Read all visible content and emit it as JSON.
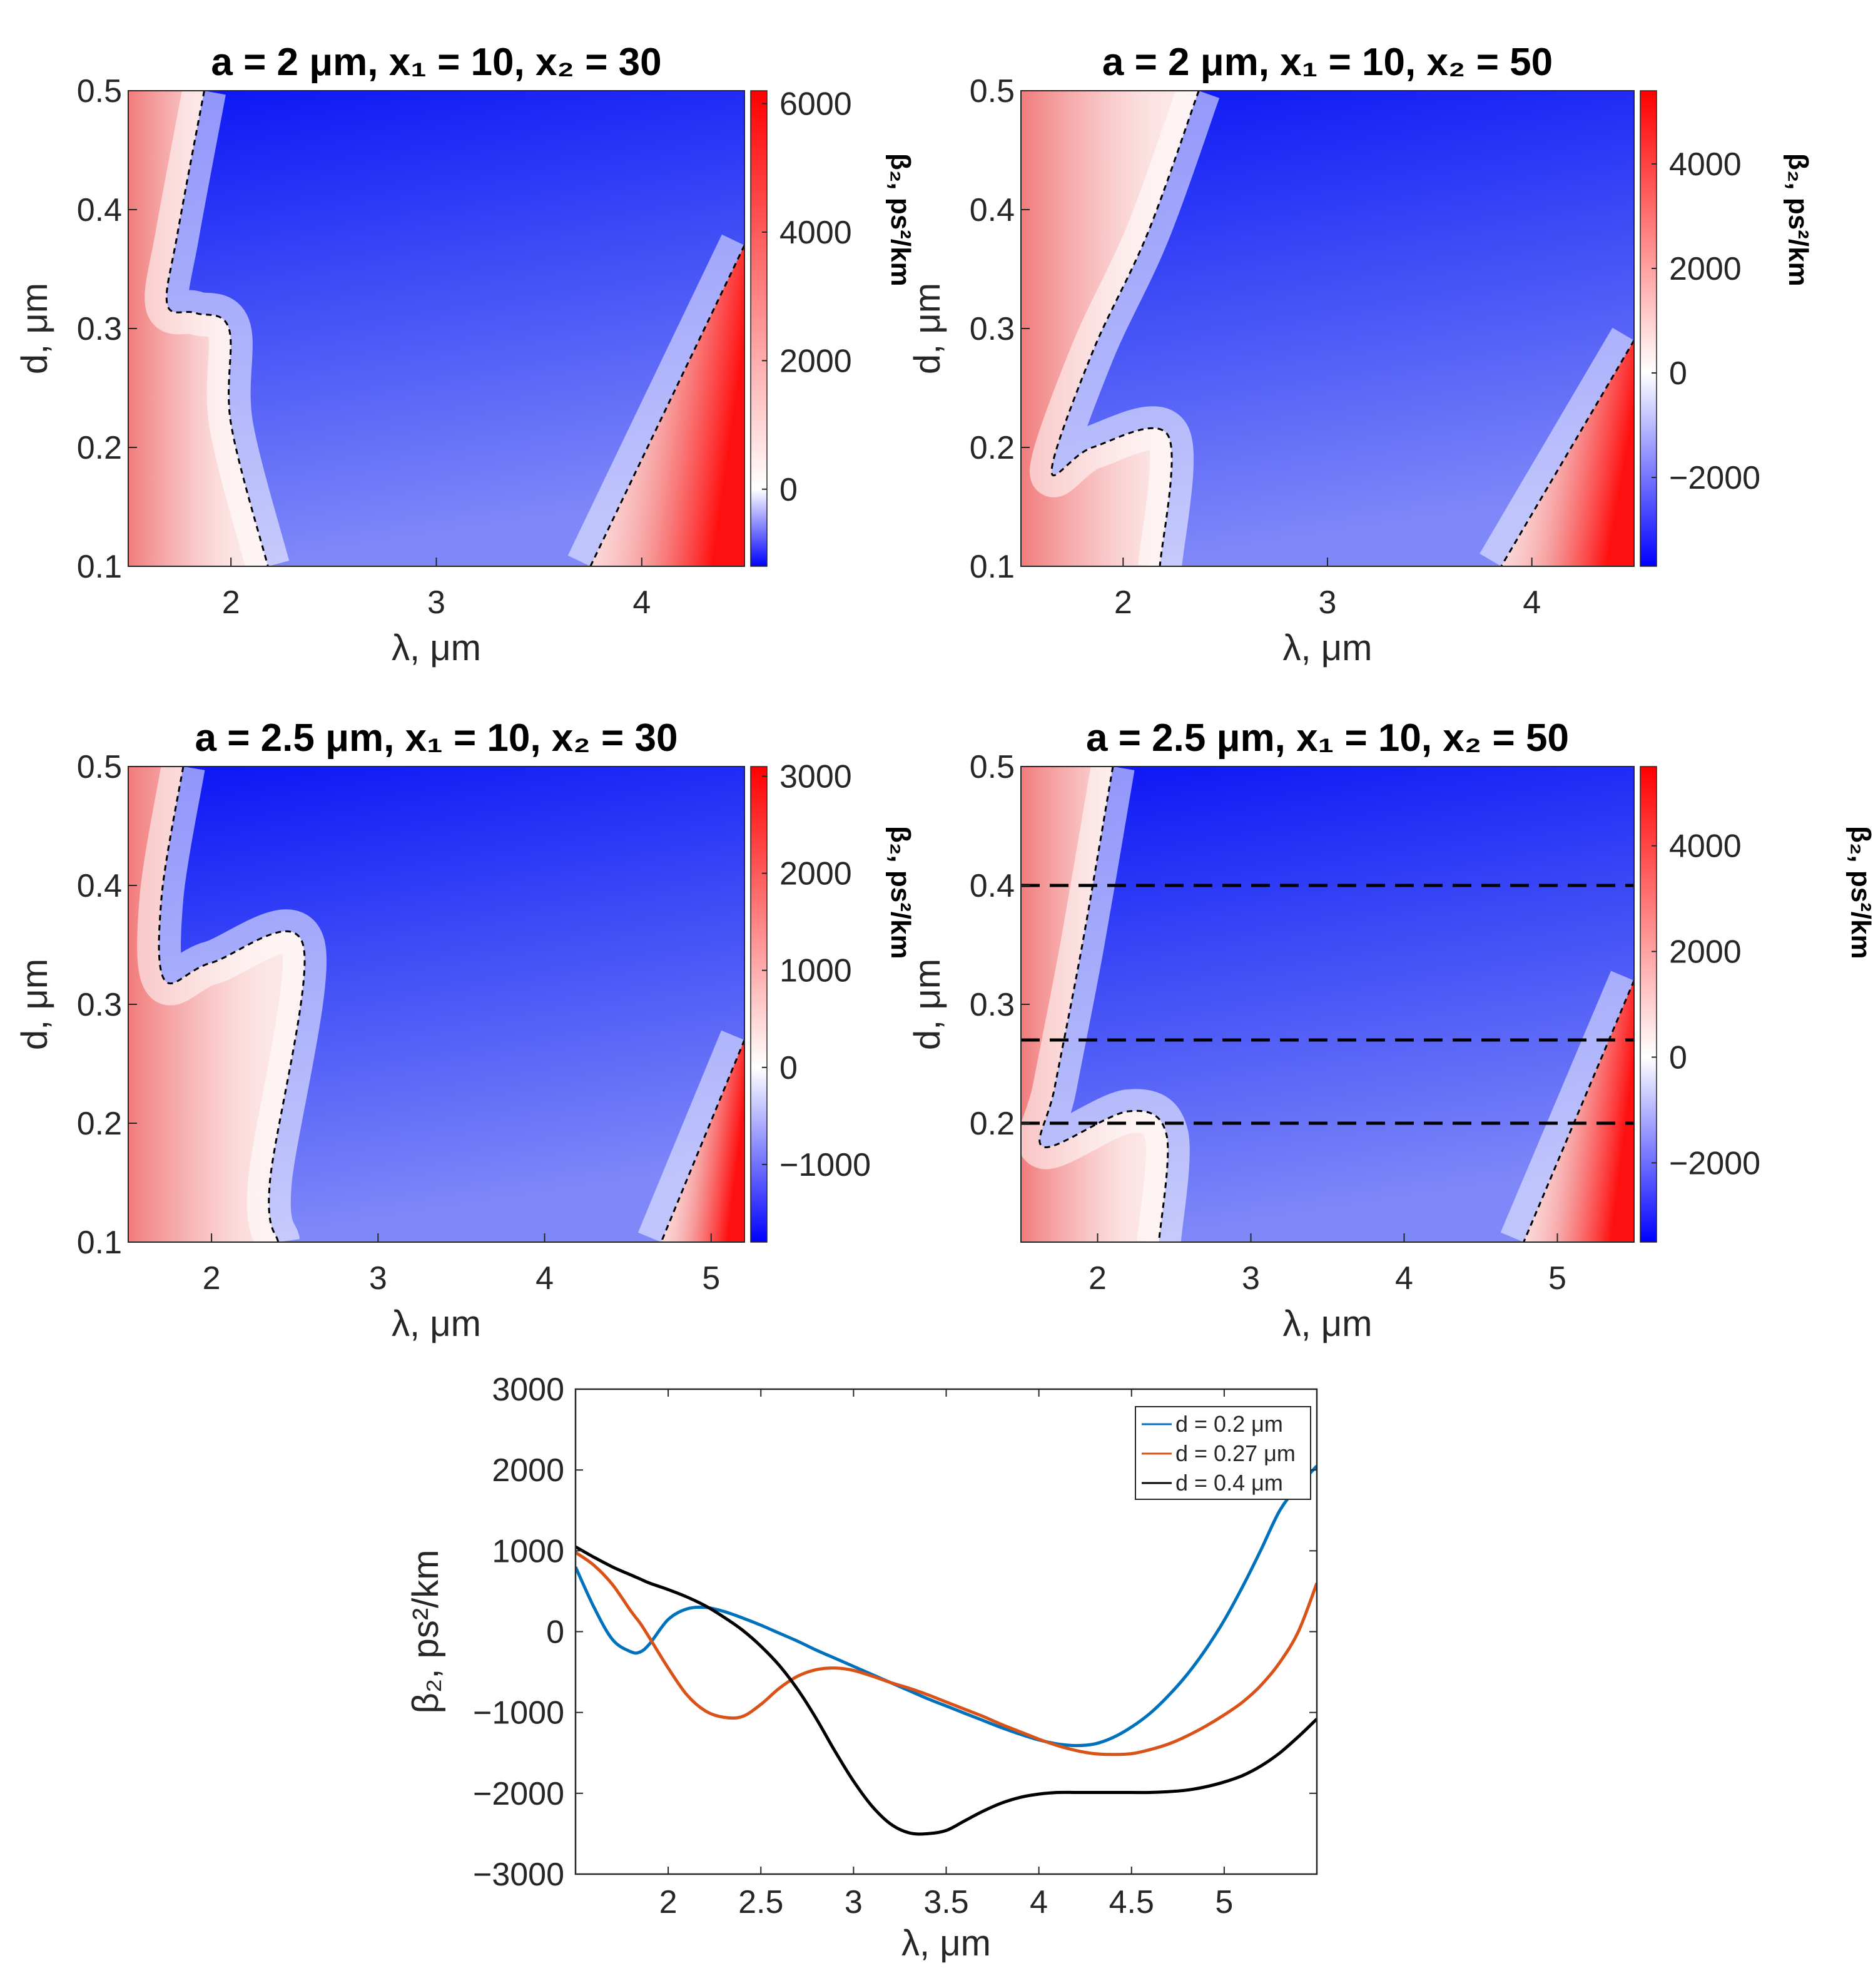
{
  "colors": {
    "positive": "#ff0000",
    "zero": "#ffffff",
    "negative": "#0000ff",
    "blue_line": "#0072bd",
    "orange_line": "#d95319",
    "black_line": "#000000"
  },
  "chart_data": [
    {
      "type": "heatmap",
      "title": "a = 2 μm, x₁ = 10, x₂ = 30",
      "xlabel": "λ, μm",
      "ylabel": "d, μm",
      "xlim": [
        1.5,
        4.5
      ],
      "ylim": [
        0.1,
        0.5
      ],
      "xticks": [
        2,
        3,
        4
      ],
      "yticks": [
        0.1,
        0.2,
        0.3,
        0.4,
        0.5
      ],
      "colorbar": {
        "label": "β₂, ps²/km",
        "range": [
          -1200,
          6200
        ],
        "ticks": [
          0,
          2000,
          4000,
          6000
        ]
      },
      "zero_contours": [
        [
          [
            1.87,
            0.5
          ],
          [
            1.74,
            0.38
          ],
          [
            1.69,
            0.32
          ],
          [
            1.83,
            0.313
          ],
          [
            1.99,
            0.3
          ],
          [
            2.0,
            0.22
          ],
          [
            2.18,
            0.1
          ]
        ],
        [
          [
            4.5,
            0.37
          ],
          [
            3.75,
            0.1
          ]
        ]
      ]
    },
    {
      "type": "heatmap",
      "title": "a = 2 μm, x₁ = 10, x₂ = 50",
      "xlabel": "λ, μm",
      "ylabel": "d, μm",
      "xlim": [
        1.5,
        4.5
      ],
      "ylim": [
        0.1,
        0.5
      ],
      "xticks": [
        2,
        3,
        4
      ],
      "yticks": [
        0.1,
        0.2,
        0.3,
        0.4,
        0.5
      ],
      "colorbar": {
        "label": "β₂, ps²/km",
        "range": [
          -3700,
          5400
        ],
        "ticks": [
          -2000,
          0,
          2000,
          4000
        ]
      },
      "zero_contours": [
        [
          [
            2.37,
            0.5
          ],
          [
            2.12,
            0.38
          ],
          [
            1.85,
            0.28
          ],
          [
            1.65,
            0.18
          ],
          [
            1.85,
            0.2
          ],
          [
            2.22,
            0.21
          ],
          [
            2.18,
            0.1
          ]
        ],
        [
          [
            4.5,
            0.29
          ],
          [
            3.85,
            0.1
          ]
        ]
      ]
    },
    {
      "type": "heatmap",
      "title": "a = 2.5 μm, x₁ = 10, x₂ = 30",
      "xlabel": "λ, μm",
      "ylabel": "d, μm",
      "xlim": [
        1.5,
        5.2
      ],
      "ylim": [
        0.1,
        0.5
      ],
      "xticks": [
        2,
        3,
        4,
        5
      ],
      "yticks": [
        0.1,
        0.2,
        0.3,
        0.4,
        0.5
      ],
      "colorbar": {
        "label": "β₂, ps²/km",
        "range": [
          -1800,
          3100
        ],
        "ticks": [
          -1000,
          0,
          1000,
          2000,
          3000
        ]
      },
      "zero_contours": [
        [
          [
            1.83,
            0.5
          ],
          [
            1.7,
            0.39
          ],
          [
            1.72,
            0.32
          ],
          [
            2.0,
            0.335
          ],
          [
            2.55,
            0.35
          ],
          [
            2.35,
            0.15
          ],
          [
            2.4,
            0.1
          ]
        ],
        [
          [
            5.2,
            0.27
          ],
          [
            4.7,
            0.1
          ]
        ]
      ]
    },
    {
      "type": "heatmap",
      "title": "a = 2.5 μm, x₁ = 10, x₂ = 50",
      "xlabel": "λ, μm",
      "ylabel": "d, μm",
      "xlim": [
        1.5,
        5.5
      ],
      "ylim": [
        0.1,
        0.5
      ],
      "xticks": [
        2,
        3,
        4,
        5
      ],
      "yticks": [
        0.2,
        0.3,
        0.4,
        0.5
      ],
      "colorbar": {
        "label": "β₂, ps²/km",
        "range": [
          -3500,
          5500
        ],
        "ticks": [
          -2000,
          0,
          2000,
          4000
        ]
      },
      "zero_contours": [
        [
          [
            2.1,
            0.5
          ],
          [
            1.9,
            0.35
          ],
          [
            1.72,
            0.23
          ],
          [
            1.65,
            0.18
          ],
          [
            2.2,
            0.21
          ],
          [
            2.45,
            0.19
          ],
          [
            2.4,
            0.1
          ]
        ],
        [
          [
            5.5,
            0.32
          ],
          [
            4.78,
            0.1
          ]
        ]
      ],
      "reference_lines": [
        0.2,
        0.27,
        0.4
      ]
    },
    {
      "type": "line",
      "xlabel": "λ, μm",
      "ylabel": "β₂, ps²/km",
      "xlim": [
        1.5,
        5.5
      ],
      "ylim": [
        -3000,
        3000
      ],
      "xticks": [
        2,
        2.5,
        3,
        3.5,
        4,
        4.5,
        5
      ],
      "yticks": [
        -3000,
        -2000,
        -1000,
        0,
        1000,
        2000,
        3000
      ],
      "legend_position": "top-right",
      "x": [
        1.5,
        1.6,
        1.7,
        1.8,
        1.85,
        1.9,
        2.0,
        2.1,
        2.2,
        2.3,
        2.4,
        2.5,
        2.6,
        2.7,
        2.8,
        2.9,
        3.0,
        3.1,
        3.2,
        3.3,
        3.4,
        3.5,
        3.6,
        3.7,
        3.8,
        3.9,
        4.0,
        4.1,
        4.2,
        4.3,
        4.4,
        4.5,
        4.6,
        4.7,
        4.8,
        4.9,
        5.0,
        5.1,
        5.2,
        5.3,
        5.4,
        5.5
      ],
      "series": [
        {
          "name": "d = 0.2 μm",
          "color": "#0072bd",
          "values": [
            800,
            300,
            -100,
            -250,
            -250,
            -150,
            150,
            280,
            300,
            250,
            170,
            80,
            -20,
            -120,
            -230,
            -330,
            -430,
            -530,
            -630,
            -730,
            -830,
            -920,
            -1010,
            -1100,
            -1190,
            -1270,
            -1340,
            -1390,
            -1410,
            -1390,
            -1310,
            -1180,
            -1010,
            -790,
            -530,
            -220,
            140,
            560,
            1020,
            1500,
            1800,
            2050
          ]
        },
        {
          "name": "d = 0.27 μm",
          "color": "#d95319",
          "values": [
            980,
            820,
            580,
            250,
            100,
            -80,
            -450,
            -780,
            -980,
            -1060,
            -1050,
            -900,
            -700,
            -550,
            -470,
            -450,
            -480,
            -550,
            -630,
            -700,
            -780,
            -870,
            -960,
            -1050,
            -1150,
            -1240,
            -1330,
            -1410,
            -1470,
            -1510,
            -1520,
            -1510,
            -1460,
            -1390,
            -1290,
            -1170,
            -1030,
            -870,
            -660,
            -380,
            0,
            600
          ]
        },
        {
          "name": "d = 0.4 μm",
          "color": "#000000",
          "values": [
            1050,
            920,
            800,
            700,
            650,
            600,
            520,
            430,
            320,
            180,
            20,
            -180,
            -420,
            -720,
            -1080,
            -1480,
            -1850,
            -2160,
            -2380,
            -2490,
            -2500,
            -2460,
            -2340,
            -2220,
            -2120,
            -2050,
            -2010,
            -1990,
            -1990,
            -1990,
            -1990,
            -1990,
            -1990,
            -1980,
            -1960,
            -1920,
            -1860,
            -1780,
            -1660,
            -1500,
            -1300,
            -1080
          ]
        }
      ]
    }
  ]
}
